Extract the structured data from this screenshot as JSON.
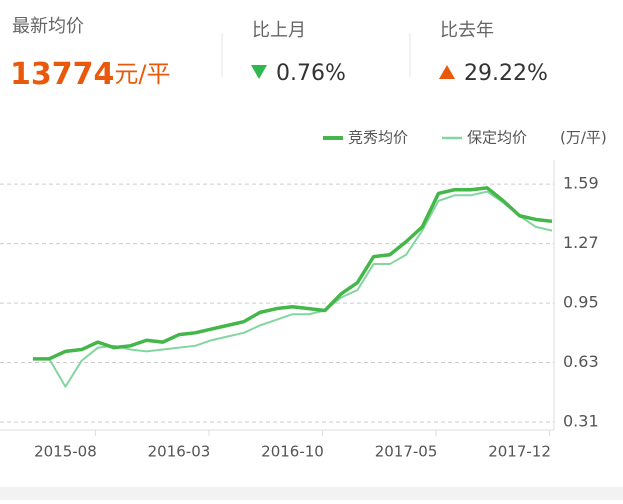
{
  "header": {
    "latest": {
      "label": "最新均价",
      "value": "13774",
      "unit": "元/平"
    },
    "mom": {
      "label": "比上月",
      "value": "0.76%"
    },
    "yoy": {
      "label": "比去年",
      "value": "29.22%"
    }
  },
  "chart_data": {
    "type": "line",
    "y_label": "(万/平)",
    "categories": [
      null,
      null,
      "2015-08",
      null,
      null,
      null,
      null,
      null,
      null,
      "2016-03",
      null,
      null,
      null,
      null,
      null,
      null,
      "2016-10",
      null,
      null,
      null,
      null,
      null,
      null,
      "2017-05",
      null,
      null,
      null,
      null,
      null,
      null,
      "2017-12",
      null,
      null
    ],
    "series": [
      {
        "name": "竞秀均价",
        "color": "#45b649",
        "values": [
          0.65,
          0.65,
          0.69,
          0.7,
          0.74,
          0.71,
          0.72,
          0.75,
          0.74,
          0.78,
          0.79,
          0.81,
          0.83,
          0.85,
          0.9,
          0.92,
          0.93,
          0.92,
          0.91,
          1.0,
          1.06,
          1.2,
          1.21,
          1.28,
          1.36,
          1.54,
          1.56,
          1.56,
          1.57,
          1.5,
          1.42,
          1.4,
          1.39
        ]
      },
      {
        "name": "保定均价",
        "color": "#84d6a0",
        "values": [
          0.65,
          0.65,
          0.5,
          0.64,
          0.71,
          0.72,
          0.7,
          0.69,
          0.7,
          0.71,
          0.72,
          0.75,
          0.77,
          0.79,
          0.83,
          0.86,
          0.89,
          0.89,
          0.91,
          0.98,
          1.02,
          1.16,
          1.16,
          1.21,
          1.34,
          1.5,
          1.53,
          1.53,
          1.55,
          1.49,
          1.42,
          1.36,
          1.34
        ]
      }
    ],
    "ylim": [
      0.31,
      1.72
    ],
    "yticks": [
      0.31,
      0.63,
      0.95,
      1.27,
      1.59
    ],
    "grid": true
  }
}
